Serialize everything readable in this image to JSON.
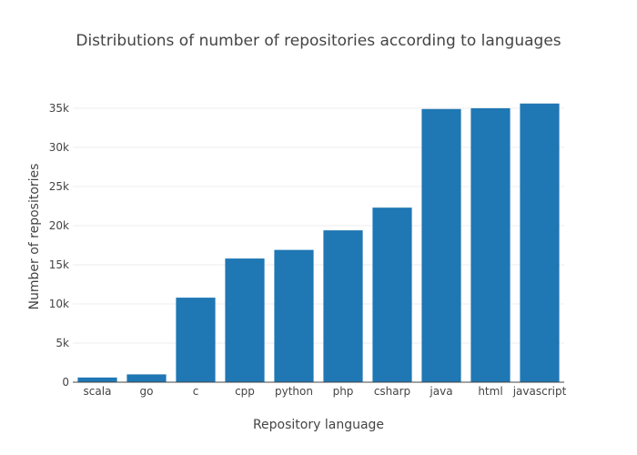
{
  "chart_data": {
    "type": "bar",
    "title": "Distributions of number of repositories according to languages",
    "xlabel": "Repository language",
    "ylabel": "Number of repositories",
    "categories": [
      "scala",
      "go",
      "c",
      "cpp",
      "python",
      "php",
      "csharp",
      "java",
      "html",
      "javascript"
    ],
    "values": [
      600,
      1000,
      10800,
      15800,
      16900,
      19400,
      22300,
      34900,
      35000,
      35600
    ],
    "ylim": [
      0,
      37200
    ],
    "yticks": [
      0,
      5000,
      10000,
      15000,
      20000,
      25000,
      30000,
      35000
    ],
    "ytick_labels": [
      "0",
      "5k",
      "10k",
      "15k",
      "20k",
      "25k",
      "30k",
      "35k"
    ],
    "grid": true,
    "bar_color": "#1f77b4",
    "legend": "none"
  }
}
